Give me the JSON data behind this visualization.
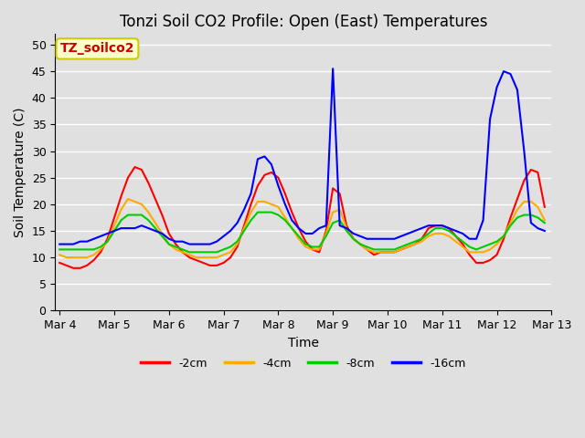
{
  "title": "Tonzi Soil CO2 Profile: Open (East) Temperatures",
  "xlabel": "Time",
  "ylabel": "Soil Temperature (C)",
  "ylim": [
    0,
    52
  ],
  "yticks": [
    0,
    5,
    10,
    15,
    20,
    25,
    30,
    35,
    40,
    45,
    50
  ],
  "background_color": "#e0e0e0",
  "plot_bg_color": "#e0e0e0",
  "legend_label": "TZ_soilco2",
  "legend_bg": "#ffffcc",
  "legend_border": "#cccc00",
  "series_labels": [
    "-2cm",
    "-4cm",
    "-8cm",
    "-16cm"
  ],
  "series_colors": [
    "#ff0000",
    "#ffaa00",
    "#00cc00",
    "#0000ff"
  ],
  "line_width": 1.5,
  "title_fontsize": 12,
  "axis_fontsize": 10,
  "tick_fontsize": 9,
  "grid_color": "#ffffff",
  "grid_linewidth": 1.0,
  "xtick_labels": [
    "Mar 4",
    "Mar 5",
    "Mar 6",
    "Mar 7",
    "Mar 8",
    "Mar 9",
    "Mar 10",
    "Mar 11",
    "Mar 12",
    "Mar 13"
  ],
  "times": [
    0,
    3,
    6,
    9,
    12,
    15,
    18,
    21,
    24,
    27,
    30,
    33,
    36,
    39,
    42,
    45,
    48,
    51,
    54,
    57,
    60,
    63,
    66,
    69,
    72,
    75,
    78,
    81,
    84,
    87,
    90,
    93,
    96,
    99,
    102,
    105,
    108,
    111,
    114,
    117,
    120,
    123,
    126,
    129,
    132,
    135,
    138,
    141,
    144,
    147,
    150,
    153,
    156,
    159,
    162,
    165,
    168,
    171,
    174,
    177,
    180,
    183,
    186,
    189,
    192,
    195,
    198,
    201,
    204,
    207,
    210,
    213
  ],
  "vals_2cm": [
    9.0,
    8.5,
    8.0,
    8.0,
    8.5,
    9.5,
    11.0,
    13.5,
    17.5,
    21.5,
    25.0,
    27.0,
    26.5,
    24.0,
    21.0,
    18.0,
    14.5,
    12.5,
    11.0,
    10.0,
    9.5,
    9.0,
    8.5,
    8.5,
    9.0,
    10.0,
    12.0,
    16.0,
    20.0,
    23.5,
    25.5,
    26.0,
    25.0,
    22.0,
    18.5,
    15.5,
    13.0,
    11.5,
    11.0,
    15.0,
    23.0,
    22.0,
    16.0,
    13.5,
    12.5,
    11.5,
    10.5,
    11.0,
    11.0,
    11.0,
    11.5,
    12.0,
    12.5,
    13.5,
    15.5,
    16.0,
    16.0,
    15.5,
    14.0,
    12.5,
    10.5,
    9.0,
    9.0,
    9.5,
    10.5,
    13.5,
    17.5,
    21.0,
    24.5,
    26.5,
    26.0,
    19.5
  ],
  "vals_4cm": [
    10.5,
    10.0,
    10.0,
    10.0,
    10.0,
    10.5,
    11.5,
    13.0,
    16.0,
    19.0,
    21.0,
    20.5,
    20.0,
    18.5,
    16.5,
    14.5,
    12.5,
    11.5,
    11.0,
    10.5,
    10.0,
    10.0,
    10.0,
    10.0,
    10.5,
    11.0,
    12.5,
    15.5,
    18.5,
    20.5,
    20.5,
    20.0,
    19.5,
    17.5,
    15.5,
    13.5,
    12.0,
    11.5,
    11.5,
    14.5,
    18.5,
    19.0,
    15.5,
    13.5,
    12.5,
    11.5,
    11.0,
    11.0,
    11.0,
    11.0,
    11.5,
    12.0,
    12.5,
    13.0,
    14.0,
    14.5,
    14.5,
    14.0,
    13.0,
    12.0,
    11.0,
    11.0,
    11.0,
    11.5,
    12.5,
    14.0,
    16.5,
    19.0,
    20.5,
    20.5,
    19.5,
    17.0
  ],
  "vals_8cm": [
    11.5,
    11.5,
    11.5,
    11.5,
    11.5,
    11.5,
    12.0,
    13.0,
    15.0,
    17.0,
    18.0,
    18.0,
    18.0,
    17.0,
    15.5,
    14.0,
    12.5,
    12.0,
    11.5,
    11.0,
    11.0,
    11.0,
    11.0,
    11.0,
    11.5,
    12.0,
    13.0,
    15.0,
    17.0,
    18.5,
    18.5,
    18.5,
    18.0,
    17.0,
    15.5,
    14.0,
    12.5,
    12.0,
    12.0,
    14.0,
    16.5,
    17.0,
    15.0,
    13.5,
    12.5,
    12.0,
    11.5,
    11.5,
    11.5,
    11.5,
    12.0,
    12.5,
    13.0,
    13.5,
    14.5,
    15.5,
    15.5,
    15.0,
    14.0,
    13.0,
    12.0,
    11.5,
    12.0,
    12.5,
    13.0,
    14.0,
    16.0,
    17.5,
    18.0,
    18.0,
    17.5,
    16.5
  ],
  "vals_16cm": [
    12.5,
    12.5,
    12.5,
    13.0,
    13.0,
    13.5,
    14.0,
    14.5,
    15.0,
    15.5,
    15.5,
    15.5,
    16.0,
    15.5,
    15.0,
    14.5,
    13.5,
    13.0,
    13.0,
    12.5,
    12.5,
    12.5,
    12.5,
    13.0,
    14.0,
    15.0,
    16.5,
    19.0,
    22.0,
    28.5,
    29.0,
    27.5,
    23.5,
    20.0,
    17.0,
    15.5,
    14.5,
    14.5,
    15.5,
    16.0,
    45.5,
    16.0,
    15.5,
    14.5,
    14.0,
    13.5,
    13.5,
    13.5,
    13.5,
    13.5,
    14.0,
    14.5,
    15.0,
    15.5,
    16.0,
    16.0,
    16.0,
    15.5,
    15.0,
    14.5,
    13.5,
    13.5,
    17.0,
    36.0,
    42.0,
    45.0,
    44.5,
    41.5,
    30.0,
    16.5,
    15.5,
    15.0
  ]
}
